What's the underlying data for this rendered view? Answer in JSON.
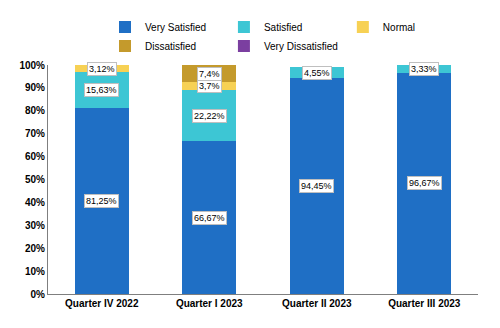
{
  "chart_data": {
    "type": "bar",
    "stacked": true,
    "data_labels": true,
    "legend": "top",
    "grid": false,
    "categories": [
      "Quarter IV 2022",
      "Quarter I 2023",
      "Quarter II 2023",
      "Quarter III 2023"
    ],
    "ylim": [
      0,
      100
    ],
    "yticks": [
      {
        "value": 0,
        "label": "0%"
      },
      {
        "value": 10,
        "label": "10%"
      },
      {
        "value": 20,
        "label": "20%"
      },
      {
        "value": 30,
        "label": "30%"
      },
      {
        "value": 40,
        "label": "40%"
      },
      {
        "value": 50,
        "label": "50%"
      },
      {
        "value": 60,
        "label": "60%"
      },
      {
        "value": 70,
        "label": "70%"
      },
      {
        "value": 80,
        "label": "80%"
      },
      {
        "value": 90,
        "label": "90%"
      },
      {
        "value": 100,
        "label": "100%"
      }
    ],
    "series": [
      {
        "name": "Very Satisfied",
        "color": "#1f6fc5",
        "values": [
          81.25,
          66.67,
          94.45,
          96.67
        ],
        "value_labels": [
          "81,25%",
          "66,67%",
          "94,45%",
          "96,67%"
        ]
      },
      {
        "name": "Satisfied",
        "color": "#3dc6d4",
        "values": [
          15.63,
          22.22,
          4.55,
          3.33
        ],
        "value_labels": [
          "15,63%",
          "22,22%",
          "4,55%",
          "3,33%"
        ]
      },
      {
        "name": "Normal",
        "color": "#f7d154",
        "values": [
          3.12,
          3.7,
          null,
          null
        ],
        "value_labels": [
          "3,12%",
          "3,7%",
          null,
          null
        ]
      },
      {
        "name": "Dissatisfied",
        "color": "#c49a2c",
        "values": [
          null,
          7.4,
          null,
          null
        ],
        "value_labels": [
          null,
          "7,4%",
          null,
          null
        ]
      },
      {
        "name": "Very Dissatisfied",
        "color": "#7b3fa0",
        "values": [
          null,
          null,
          null,
          null
        ],
        "value_labels": [
          null,
          null,
          null,
          null
        ]
      }
    ]
  }
}
